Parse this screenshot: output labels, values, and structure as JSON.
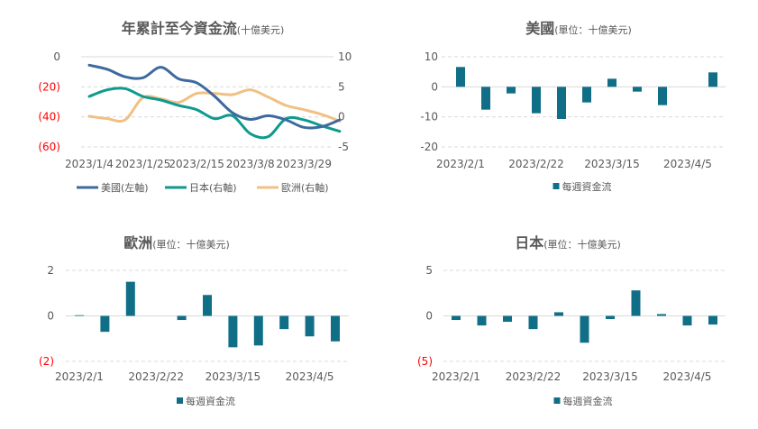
{
  "colors": {
    "us": "#3d6a9e",
    "japan": "#0e9a8e",
    "europe": "#f0c084",
    "bar": "#106f87",
    "negative_tick": "#ff0000",
    "grid": "#d9d9d9"
  },
  "chart_data": [
    {
      "id": "ytd",
      "type": "line",
      "title": "年累計至今資金流",
      "title_unit": "(十億美元)",
      "x": [
        "2023/1/4",
        "2023/1/11",
        "2023/1/18",
        "2023/1/25",
        "2023/2/1",
        "2023/2/8",
        "2023/2/15",
        "2023/2/22",
        "2023/3/1",
        "2023/3/8",
        "2023/3/15",
        "2023/3/22",
        "2023/3/29",
        "2023/4/5",
        "2023/4/12"
      ],
      "x_tick_labels": [
        "2023/1/4",
        "2023/1/25",
        "2023/2/15",
        "2023/3/8",
        "2023/3/29"
      ],
      "y_left": {
        "ticks": [
          0,
          -20,
          -40,
          -60
        ],
        "tick_labels": [
          "0",
          "(20)",
          "(40)",
          "(60)"
        ],
        "range": [
          -60,
          0
        ]
      },
      "y_right": {
        "ticks": [
          10,
          5,
          0,
          -5
        ],
        "tick_labels": [
          "10",
          "5",
          "0",
          "-5"
        ],
        "range": [
          -5,
          10
        ]
      },
      "grid": true,
      "legend_position": "bottom",
      "series": [
        {
          "name": "美國(左軸)",
          "axis": "left",
          "color_key": "us",
          "values": [
            -5.6,
            -8.3,
            -13.3,
            -14,
            -7,
            -14.7,
            -17.3,
            -26.2,
            -37.2,
            -41.7,
            -39.2,
            -42,
            -47,
            -46.5,
            -42
          ]
        },
        {
          "name": "日本(右軸)",
          "axis": "right",
          "color_key": "japan",
          "values": [
            3.4,
            4.5,
            4.7,
            3.4,
            2.8,
            1.9,
            1.2,
            -0.3,
            0.2,
            -2.8,
            -3.3,
            -0.3,
            -0.5,
            -1.5,
            -2.4
          ]
        },
        {
          "name": "歐洲(右軸)",
          "axis": "right",
          "color_key": "europe",
          "values": [
            0.1,
            -0.3,
            -0.5,
            3.2,
            3.0,
            2.4,
            3.9,
            3.9,
            3.7,
            4.5,
            3.3,
            1.9,
            1.2,
            0.4,
            -0.7
          ]
        }
      ]
    },
    {
      "id": "us",
      "type": "bar",
      "title": "美國",
      "title_unit": "(單位：十億美元)",
      "categories": [
        "2023/2/1",
        "2023/2/8",
        "2023/2/15",
        "2023/2/22",
        "2023/3/1",
        "2023/3/8",
        "2023/3/15",
        "2023/3/22",
        "2023/3/29",
        "2023/4/5",
        "2023/4/12"
      ],
      "x_tick_labels": [
        "2023/2/1",
        "2023/2/22",
        "2023/3/15",
        "2023/4/5"
      ],
      "values": [
        6.6,
        -7.6,
        -2.2,
        -8.8,
        -10.7,
        -5.2,
        2.7,
        -1.6,
        -6.1,
        0,
        4.8
      ],
      "y": {
        "ticks": [
          10,
          0,
          -10,
          -20
        ],
        "tick_labels": [
          "10",
          "0",
          "-10",
          "-20"
        ],
        "range": [
          -20,
          10
        ]
      },
      "legend": "每週資金流"
    },
    {
      "id": "europe",
      "type": "bar",
      "title": "歐洲",
      "title_unit": "(單位：十億美元)",
      "categories": [
        "2023/2/1",
        "2023/2/8",
        "2023/2/15",
        "2023/2/22",
        "2023/3/1",
        "2023/3/8",
        "2023/3/15",
        "2023/3/22",
        "2023/3/29",
        "2023/4/5",
        "2023/4/12"
      ],
      "x_tick_labels": [
        "2023/2/1",
        "2023/2/22",
        "2023/3/15",
        "2023/4/5"
      ],
      "values": [
        0.03,
        -0.7,
        1.5,
        0,
        -0.18,
        0.92,
        -1.38,
        -1.3,
        -0.58,
        -0.9,
        -1.12
      ],
      "y": {
        "ticks": [
          2,
          0,
          -2
        ],
        "tick_labels": [
          "2",
          "0",
          "(2)"
        ],
        "range": [
          -2,
          2
        ]
      },
      "legend": "每週資金流"
    },
    {
      "id": "japan",
      "type": "bar",
      "title": "日本",
      "title_unit": "(單位：十億美元)",
      "categories": [
        "2023/2/1",
        "2023/2/8",
        "2023/2/15",
        "2023/2/22",
        "2023/3/1",
        "2023/3/8",
        "2023/3/15",
        "2023/3/22",
        "2023/3/29",
        "2023/4/5",
        "2023/4/12"
      ],
      "x_tick_labels": [
        "2023/2/1",
        "2023/2/22",
        "2023/3/15",
        "2023/4/5"
      ],
      "values": [
        -0.45,
        -1.05,
        -0.65,
        -1.45,
        0.4,
        -2.95,
        -0.35,
        2.8,
        0.2,
        -1.05,
        -0.95
      ],
      "y": {
        "ticks": [
          5,
          0,
          -5
        ],
        "tick_labels": [
          "5",
          "0",
          "(5)"
        ],
        "range": [
          -5,
          5
        ]
      },
      "legend": "每週資金流"
    }
  ]
}
